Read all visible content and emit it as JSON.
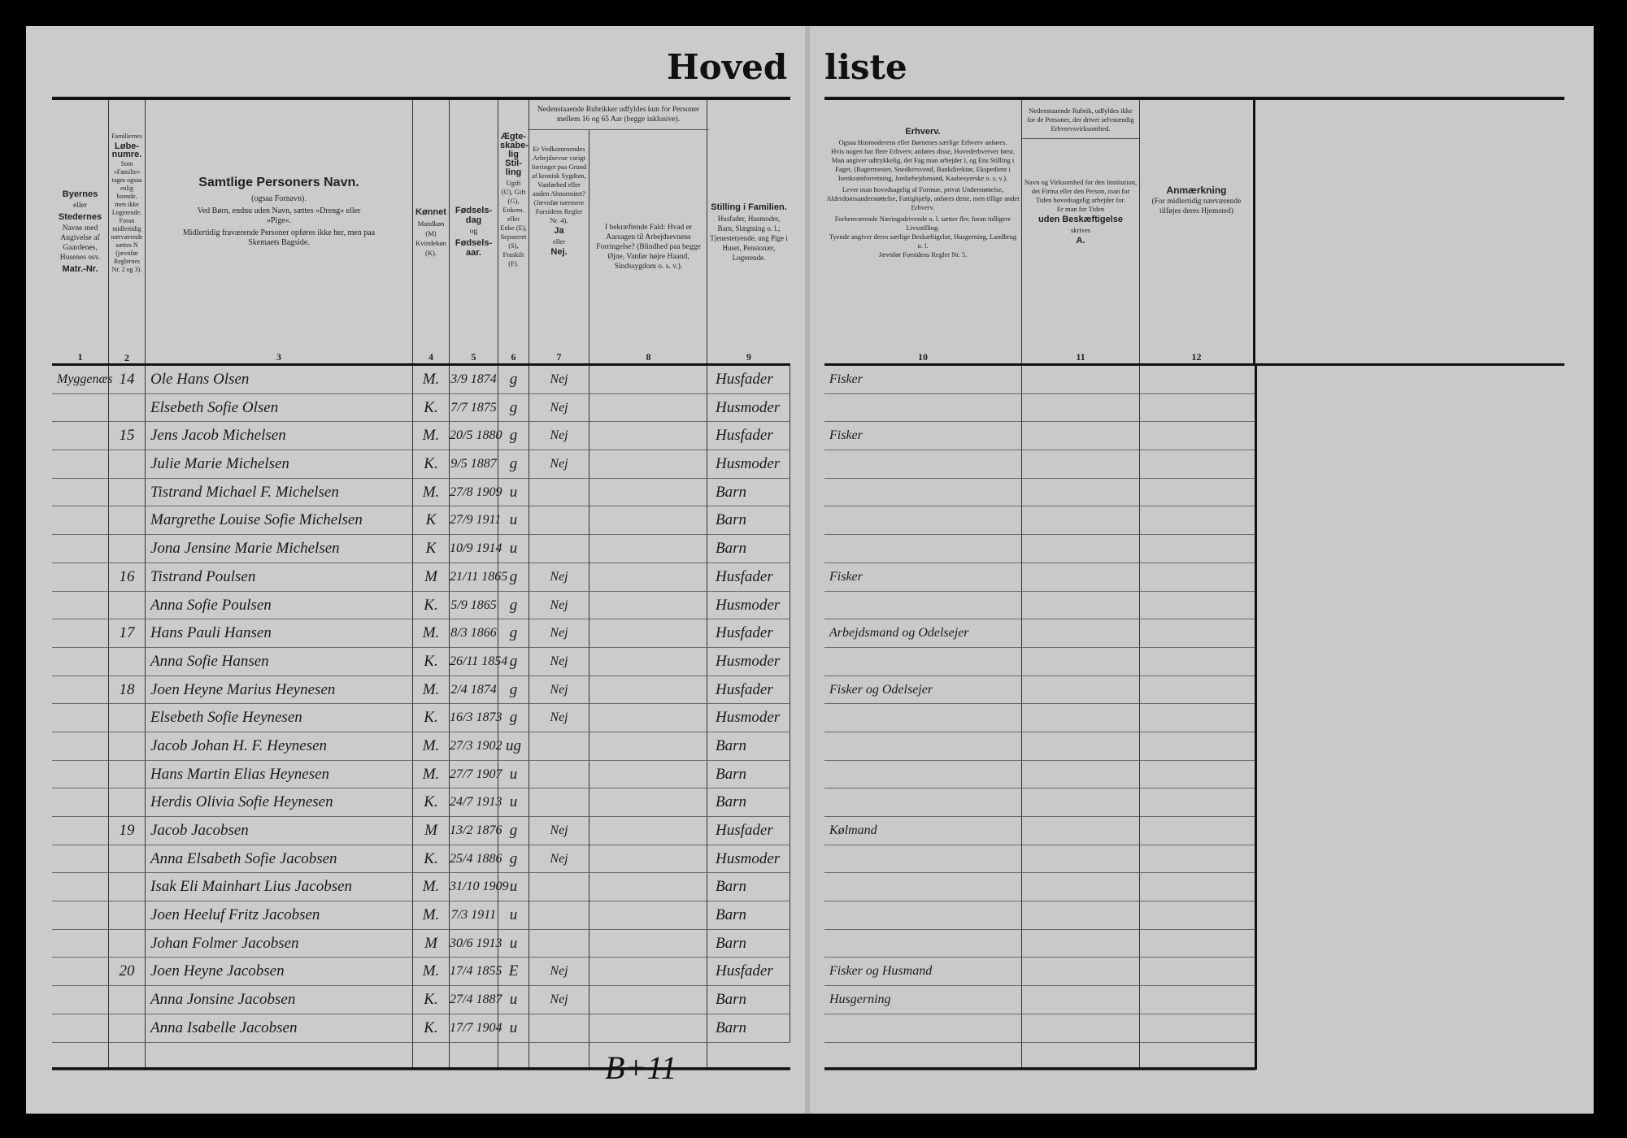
{
  "title_left": "Hoved",
  "title_right": "liste",
  "headers": {
    "c1": {
      "b1": "Byernes",
      "t1": "eller",
      "b2": "Stedernes",
      "t2": "Navne med Angivelse af Gaardenes, Husenes osv.",
      "b3": "Matr.-Nr.",
      "num": "1"
    },
    "c2": {
      "t1": "Familiernes",
      "b1": "Løbe-numre.",
      "t2": "Som »Familie« tages ogsaa enlig boende, men ikke Logerende. Foran midlertidig nærværende sættes N (jævnfør Reglernes Nr. 2 og 3).",
      "num": "2"
    },
    "c3": {
      "big": "Samtlige Personers Navn.",
      "t1": "(ogsaa Fornavn).",
      "t2": "Ved Børn, endnu uden Navn, sættes »Dreng« eller »Pige«.",
      "t3": "Midlertidig fraværende Personer opføres ikke her, men paa Skemaets Bagside.",
      "num": "3"
    },
    "c4": {
      "b1": "Kønnet",
      "t1": "Mandkøn (M) Kvindekøn (K).",
      "num": "4"
    },
    "c5": {
      "b1": "Fødsels-dag",
      "t1": "og",
      "b2": "Fødsels-aar.",
      "num": "5"
    },
    "c6": {
      "b1": "Ægte-skabe-lig Stil-ling",
      "t1": "Ugift (U), Gift (G), Enkem. eller Enke (E), Separeret (S), Fraskilt (F).",
      "num": "6"
    },
    "c78_top": "Nedenstaaende Rubrikker udfyldes kun for Personer mellem 16 og 65 Aar (begge inklusive).",
    "c7": {
      "t1": "Er Vedkommendes Arbejdsevne varigt forringet paa Grund af kronisk Sygdom, Vanførhed eller anden Abnormitet? (Jævnfør nærmere Forsidens Regler Nr. 4).",
      "b1": "Ja",
      "t2": "eller",
      "b2": "Nej.",
      "num": "7"
    },
    "c8": {
      "t1": "I bekræftende Fald: Hvad er Aarsagen til Arbejdsevnens Forringelse? (Blindhed paa begge Øjne, Vanfør højre Haand, Sindssygdom o. s. v.).",
      "num": "8"
    },
    "c9": {
      "b1": "Stilling i Familien.",
      "t1": "Husfader, Husmoder, Barn, Slægtning o. l.; Tjenestetyende, ung Pige i Huset, Pensionær, Logerende.",
      "num": "9"
    },
    "c10": {
      "b1": "Erhverv.",
      "t1": "Ogsaa Husmoderens eller Børnenes særlige Erhverv anføres.",
      "t2": "Hvis nogen har flere Erhverv, anføres disse, Hovederhvervet først.",
      "t3": "Man angiver udtrykkelig, det Fag man arbejder i, og Ens Stilling i Faget, (Bagermester, Snedkersvend, Bankdirektør, Ekspedient i Isenkramforretning, Jordarbejdsmand, Kaabesyerske o. s. v.).",
      "t4": "Lever man hovedsagelig af Formue, privat Understøttelse, Alderdomsunderstøttelse, Fattighjælp, anføres dette, men tillige andet Erhverv.",
      "t5": "Forhenværende Næringsdrivende o. l. sætter fhv. foran tidligere Livsstilling.",
      "t6": "Tyende angiver deres særlige Beskæftigelse, Husgerning, Landbrug o. l.",
      "t7": "Jævnfør Forsidens Regler Nr. 5.",
      "num": "10"
    },
    "c11": {
      "top": "Nedenstaaende Rubrik, udfyldes ikke for de Personer, der driver selvstændig Erhvervsvirksomhed.",
      "t1": "Navn og Virksomhed for den Institution, det Firma eller den Person, man for Tiden hovedsagelig arbejder for.",
      "t2": "Er man for Tiden",
      "b1": "uden Beskæftigelse",
      "t3": "skrives",
      "b2": "A.",
      "num": "11"
    },
    "c12": {
      "b1": "Anmærkning",
      "t1": "(For midlertidig nærværende tilføjes deres Hjemsted)",
      "num": "12"
    }
  },
  "rows": [
    [
      "Myggenæs",
      "14",
      "Ole Hans Olsen",
      "M.",
      "3/9 1874",
      "g",
      "Nej",
      "",
      "Husfader",
      "Fisker"
    ],
    [
      "",
      "",
      "Elsebeth Sofie Olsen",
      "K.",
      "7/7 1875",
      "g",
      "Nej",
      "",
      "Husmoder",
      ""
    ],
    [
      "",
      "15",
      "Jens Jacob Michelsen",
      "M.",
      "20/5 1880",
      "g",
      "Nej",
      "",
      "Husfader",
      "Fisker"
    ],
    [
      "",
      "",
      "Julie Marie Michelsen",
      "K.",
      "9/5 1887",
      "g",
      "Nej",
      "",
      "Husmoder",
      ""
    ],
    [
      "",
      "",
      "Tistrand Michael F. Michelsen",
      "M.",
      "27/8 1909",
      "u",
      "",
      "",
      "Barn",
      ""
    ],
    [
      "",
      "",
      "Margrethe Louise Sofie Michelsen",
      "K",
      "27/9 1911",
      "u",
      "",
      "",
      "Barn",
      ""
    ],
    [
      "",
      "",
      "Jona Jensine Marie Michelsen",
      "K",
      "10/9 1914",
      "u",
      "",
      "",
      "Barn",
      ""
    ],
    [
      "",
      "16",
      "Tistrand Poulsen",
      "M",
      "21/11 1865",
      "g",
      "Nej",
      "",
      "Husfader",
      "Fisker"
    ],
    [
      "",
      "",
      "Anna Sofie Poulsen",
      "K.",
      "5/9 1865",
      "g",
      "Nej",
      "",
      "Husmoder",
      ""
    ],
    [
      "",
      "17",
      "Hans Pauli Hansen",
      "M.",
      "8/3 1866",
      "g",
      "Nej",
      "",
      "Husfader",
      "Arbejdsmand og Odelsejer"
    ],
    [
      "",
      "",
      "Anna Sofie Hansen",
      "K.",
      "26/11 1854",
      "g",
      "Nej",
      "",
      "Husmoder",
      ""
    ],
    [
      "",
      "18",
      "Joen Heyne Marius Heynesen",
      "M.",
      "2/4 1874",
      "g",
      "Nej",
      "",
      "Husfader",
      "Fisker og Odelsejer"
    ],
    [
      "",
      "",
      "Elsebeth Sofie Heynesen",
      "K.",
      "16/3 1873",
      "g",
      "Nej",
      "",
      "Husmoder",
      ""
    ],
    [
      "",
      "",
      "Jacob Johan H. F. Heynesen",
      "M.",
      "27/3 1902",
      "ug",
      "",
      "",
      "Barn",
      ""
    ],
    [
      "",
      "",
      "Hans Martin Elias Heynesen",
      "M.",
      "27/7 1907",
      "u",
      "",
      "",
      "Barn",
      ""
    ],
    [
      "",
      "",
      "Herdis Olivia Sofie Heynesen",
      "K.",
      "24/7 1913",
      "u",
      "",
      "",
      "Barn",
      ""
    ],
    [
      "",
      "19",
      "Jacob Jacobsen",
      "M",
      "13/2 1876",
      "g",
      "Nej",
      "",
      "Husfader",
      "Kølmand"
    ],
    [
      "",
      "",
      "Anna Elsabeth Sofie Jacobsen",
      "K.",
      "25/4 1886",
      "g",
      "Nej",
      "",
      "Husmoder",
      ""
    ],
    [
      "",
      "",
      "Isak Eli Mainhart Lius Jacobsen",
      "M.",
      "31/10 1909",
      "u",
      "",
      "",
      "Barn",
      ""
    ],
    [
      "",
      "",
      "Joen Heeluf Fritz Jacobsen",
      "M.",
      "7/3 1911",
      "u",
      "",
      "",
      "Barn",
      ""
    ],
    [
      "",
      "",
      "Johan Folmer Jacobsen",
      "M",
      "30/6 1913",
      "u",
      "",
      "",
      "Barn",
      ""
    ],
    [
      "",
      "20",
      "Joen Heyne Jacobsen",
      "M.",
      "17/4 1855",
      "E",
      "Nej",
      "",
      "Husfader",
      "Fisker og Husmand"
    ],
    [
      "",
      "",
      "Anna Jonsine Jacobsen",
      "K.",
      "27/4 1887",
      "u",
      "Nej",
      "",
      "Barn",
      "Husgerning"
    ],
    [
      "",
      "",
      "Anna Isabelle Jacobsen",
      "K.",
      "17/7 1904",
      "u",
      "",
      "",
      "Barn",
      ""
    ]
  ],
  "footer_note": "B+11"
}
